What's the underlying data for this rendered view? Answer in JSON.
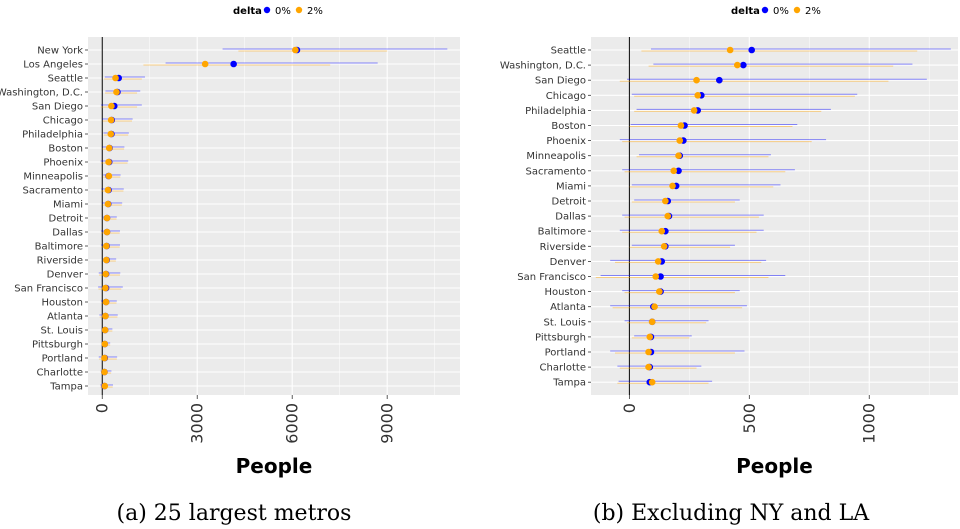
{
  "legend": {
    "title": "delta",
    "entries": [
      {
        "label": "0%",
        "color": "#0000ff"
      },
      {
        "label": "2%",
        "color": "#ffa500"
      }
    ]
  },
  "chart_data": [
    {
      "type": "scatter",
      "title": "",
      "caption": "(a) 25 largest metros",
      "xlabel": "People",
      "ylabel": "",
      "xlim": [
        -450,
        11300
      ],
      "xticks": [
        0,
        3000,
        6000,
        9000
      ],
      "xtick_labels": [
        "0",
        "3000",
        "6000",
        "9000"
      ],
      "grid": true,
      "legend_placement": "top",
      "categories": [
        "New York",
        "Los Angeles",
        "Seattle",
        "Washington, D.C.",
        "San Diego",
        "Chicago",
        "Philadelphia",
        "Boston",
        "Phoenix",
        "Minneapolis",
        "Sacramento",
        "Miami",
        "Detroit",
        "Dallas",
        "Baltimore",
        "Riverside",
        "Denver",
        "San Francisco",
        "Houston",
        "Atlanta",
        "St. Louis",
        "Pittsburgh",
        "Portland",
        "Charlotte",
        "Tampa"
      ],
      "series": [
        {
          "name": "0%",
          "color": "#0000ff",
          "values": [
            6150,
            4150,
            520,
            480,
            380,
            300,
            290,
            230,
            220,
            200,
            200,
            190,
            150,
            150,
            140,
            140,
            120,
            120,
            120,
            100,
            90,
            80,
            80,
            70,
            70
          ],
          "lower": [
            3800,
            2000,
            80,
            100,
            -40,
            0,
            40,
            0,
            -50,
            30,
            -30,
            0,
            20,
            -40,
            -40,
            20,
            -110,
            -130,
            -40,
            -90,
            -20,
            20,
            -110,
            -50,
            -60
          ],
          "upper": [
            10900,
            8700,
            1350,
            1200,
            1250,
            960,
            840,
            700,
            820,
            580,
            680,
            630,
            460,
            560,
            560,
            440,
            570,
            650,
            460,
            490,
            320,
            250,
            470,
            290,
            340
          ]
        },
        {
          "name": "2%",
          "color": "#ffa500",
          "values": [
            6100,
            3250,
            420,
            450,
            290,
            280,
            270,
            220,
            200,
            210,
            180,
            180,
            150,
            150,
            130,
            130,
            110,
            100,
            120,
            100,
            90,
            80,
            70,
            70,
            80
          ],
          "lower": [
            4300,
            1300,
            60,
            90,
            -50,
            10,
            50,
            0,
            -40,
            30,
            -30,
            10,
            20,
            -30,
            -30,
            30,
            -100,
            -120,
            -30,
            -80,
            -10,
            20,
            -100,
            -40,
            -60
          ],
          "upper": [
            9000,
            7200,
            1250,
            1100,
            1100,
            940,
            820,
            690,
            800,
            570,
            670,
            620,
            450,
            550,
            550,
            430,
            560,
            600,
            450,
            480,
            320,
            250,
            460,
            280,
            330
          ]
        }
      ]
    },
    {
      "type": "scatter",
      "title": "",
      "caption": "(b) Excluding NY and LA",
      "xlabel": "People",
      "ylabel": "",
      "xlim": [
        -160,
        1370
      ],
      "xticks": [
        0,
        500,
        1000
      ],
      "xtick_labels": [
        "0",
        "500",
        "1000"
      ],
      "grid": true,
      "legend_placement": "top",
      "categories": [
        "Seattle",
        "Washington, D.C.",
        "San Diego",
        "Chicago",
        "Philadelphia",
        "Boston",
        "Phoenix",
        "Minneapolis",
        "Sacramento",
        "Miami",
        "Detroit",
        "Dallas",
        "Baltimore",
        "Riverside",
        "Denver",
        "San Francisco",
        "Houston",
        "Atlanta",
        "St. Louis",
        "Pittsburgh",
        "Portland",
        "Charlotte",
        "Tampa"
      ],
      "series": [
        {
          "name": "0%",
          "color": "#0000ff",
          "values": [
            510,
            475,
            375,
            300,
            285,
            230,
            225,
            210,
            205,
            195,
            160,
            165,
            150,
            150,
            135,
            130,
            130,
            100,
            95,
            90,
            90,
            85,
            85
          ],
          "lower": [
            90,
            100,
            -10,
            10,
            30,
            5,
            -40,
            40,
            -30,
            10,
            20,
            -30,
            -40,
            10,
            -80,
            -120,
            -30,
            -80,
            -20,
            20,
            -80,
            -50,
            -45
          ],
          "upper": [
            1340,
            1180,
            1240,
            950,
            840,
            700,
            820,
            590,
            690,
            630,
            460,
            560,
            560,
            440,
            570,
            650,
            460,
            490,
            330,
            260,
            480,
            300,
            345
          ]
        },
        {
          "name": "2%",
          "color": "#ffa500",
          "values": [
            420,
            450,
            280,
            285,
            270,
            215,
            210,
            205,
            185,
            180,
            150,
            160,
            135,
            145,
            120,
            110,
            125,
            105,
            95,
            85,
            80,
            80,
            95
          ],
          "lower": [
            50,
            80,
            -40,
            20,
            20,
            0,
            -30,
            30,
            -20,
            0,
            10,
            -20,
            -30,
            0,
            -60,
            -140,
            -20,
            -70,
            -10,
            10,
            -60,
            -40,
            -50
          ],
          "upper": [
            1200,
            1100,
            1080,
            940,
            800,
            680,
            760,
            580,
            650,
            600,
            440,
            540,
            530,
            420,
            550,
            580,
            440,
            470,
            320,
            250,
            440,
            280,
            330
          ]
        }
      ]
    }
  ]
}
